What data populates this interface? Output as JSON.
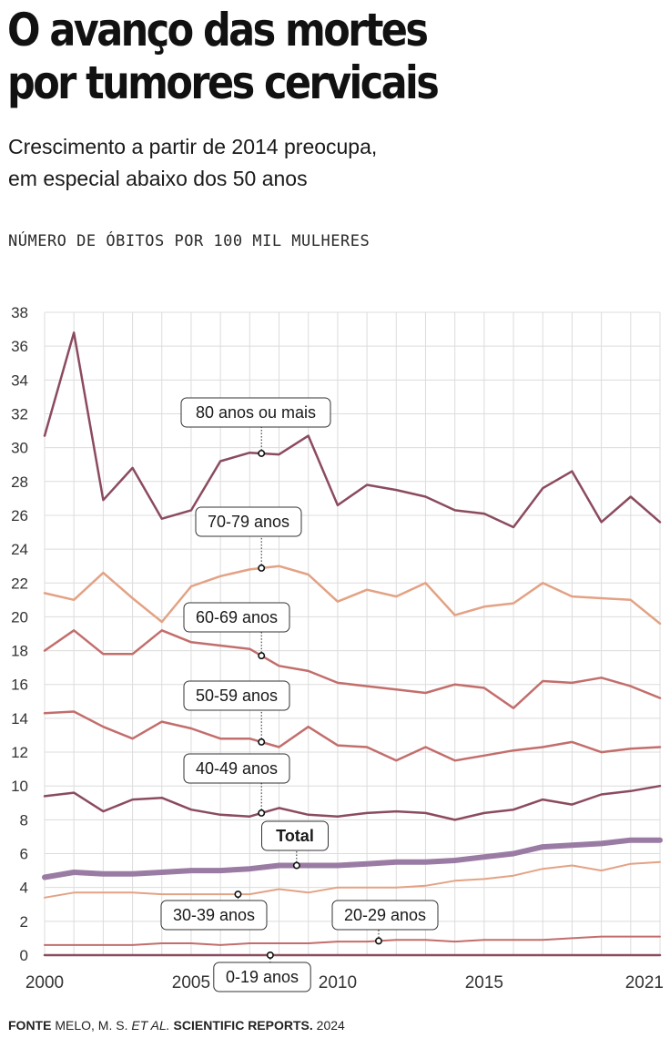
{
  "title_line1": "O avanço das mortes",
  "title_line2": "por tumores cervicais",
  "subtitle_line1": "Crescimento a partir de 2014 preocupa,",
  "subtitle_line2": "em especial abaixo dos 50 anos",
  "unit_label": "NÚMERO DE ÓBITOS POR 100 MIL MULHERES",
  "source": {
    "label": "FONTE",
    "author": "MELO, M. S.",
    "etal": "ET AL.",
    "journal": "SCIENTIFIC REPORTS.",
    "year": "2024"
  },
  "chart_data": {
    "type": "line",
    "x": [
      2000,
      2001,
      2002,
      2003,
      2004,
      2005,
      2006,
      2007,
      2008,
      2009,
      2010,
      2011,
      2012,
      2013,
      2014,
      2015,
      2016,
      2017,
      2018,
      2019,
      2020,
      2021
    ],
    "ylim": [
      0,
      38
    ],
    "xlim": [
      2000,
      2021
    ],
    "y_ticks": [
      0,
      2,
      4,
      6,
      8,
      10,
      12,
      14,
      16,
      18,
      20,
      22,
      24,
      26,
      28,
      30,
      32,
      34,
      36,
      38
    ],
    "x_ticks": [
      2000,
      2005,
      2010,
      2015,
      2021
    ],
    "grid": true,
    "legend": "inline labels",
    "series": [
      {
        "name": "80 anos ou mais",
        "color": "#8b4b5e",
        "width": 2.5,
        "values": [
          30.7,
          36.8,
          26.9,
          28.8,
          25.8,
          26.3,
          29.2,
          29.7,
          29.6,
          30.7,
          26.6,
          27.8,
          27.5,
          27.1,
          26.3,
          26.1,
          25.3,
          27.6,
          28.6,
          25.6,
          27.1,
          25.6
        ],
        "annotation_x": 2007.4
      },
      {
        "name": "70-79 anos",
        "color": "#e3a284",
        "width": 2.5,
        "values": [
          21.4,
          21.0,
          22.6,
          21.1,
          19.7,
          21.8,
          22.4,
          22.8,
          23.0,
          22.5,
          20.9,
          21.6,
          21.2,
          22.0,
          20.1,
          20.6,
          20.8,
          22.0,
          21.2,
          21.1,
          21.0,
          19.6
        ],
        "annotation_x": 2007.4
      },
      {
        "name": "60-69 anos",
        "color": "#c26e6c",
        "width": 2.5,
        "values": [
          18.0,
          19.2,
          17.8,
          17.8,
          19.2,
          18.5,
          18.3,
          18.1,
          17.1,
          16.8,
          16.1,
          15.9,
          15.7,
          15.5,
          16.0,
          15.8,
          14.6,
          16.2,
          16.1,
          16.4,
          15.9,
          15.2
        ],
        "annotation_x": 2007.4
      },
      {
        "name": "50-59 anos",
        "color": "#c26e6c",
        "width": 2.5,
        "values": [
          14.3,
          14.4,
          13.5,
          12.8,
          13.8,
          13.4,
          12.8,
          12.8,
          12.3,
          13.5,
          12.4,
          12.3,
          11.5,
          12.3,
          11.5,
          11.8,
          12.1,
          12.3,
          12.6,
          12.0,
          12.2,
          12.3
        ],
        "annotation_x": 2007.4
      },
      {
        "name": "40-49 anos",
        "color": "#8b4b5e",
        "width": 2.5,
        "values": [
          9.4,
          9.6,
          8.5,
          9.2,
          9.3,
          8.6,
          8.3,
          8.2,
          8.7,
          8.3,
          8.2,
          8.4,
          8.5,
          8.4,
          8.0,
          8.4,
          8.6,
          9.2,
          8.9,
          9.5,
          9.7,
          10.0
        ],
        "annotation_x": 2007.4
      },
      {
        "name": "30-39 anos",
        "color": "#e3a284",
        "width": 2,
        "values": [
          3.4,
          3.7,
          3.7,
          3.7,
          3.6,
          3.6,
          3.6,
          3.6,
          3.9,
          3.7,
          4.0,
          4.0,
          4.0,
          4.1,
          4.4,
          4.5,
          4.7,
          5.1,
          5.3,
          5.0,
          5.4,
          5.5
        ],
        "annotation_x": 2006.6
      },
      {
        "name": "Total",
        "color": "#9a7ba3",
        "width": 6,
        "values": [
          4.6,
          4.9,
          4.8,
          4.8,
          4.9,
          5.0,
          5.0,
          5.1,
          5.3,
          5.3,
          5.3,
          5.4,
          5.5,
          5.5,
          5.6,
          5.8,
          6.0,
          6.4,
          6.5,
          6.6,
          6.8,
          6.8
        ],
        "annotation_x": 2008.6
      },
      {
        "name": "20-29 anos",
        "color": "#c26e6c",
        "width": 2,
        "values": [
          0.6,
          0.6,
          0.6,
          0.6,
          0.7,
          0.7,
          0.6,
          0.7,
          0.7,
          0.7,
          0.8,
          0.8,
          0.9,
          0.9,
          0.8,
          0.9,
          0.9,
          0.9,
          1.0,
          1.1,
          1.1,
          1.1
        ],
        "annotation_x": 2011.4
      },
      {
        "name": "0-19 anos",
        "color": "#8b4b5e",
        "width": 2.5,
        "values": [
          0.0,
          0.0,
          0.0,
          0.0,
          0.0,
          0.0,
          0.0,
          0.0,
          0.0,
          0.0,
          0.0,
          0.0,
          0.0,
          0.0,
          0.0,
          0.0,
          0.0,
          0.0,
          0.0,
          0.0,
          0.0,
          0.0
        ],
        "annotation_x": 2007.7
      }
    ]
  }
}
